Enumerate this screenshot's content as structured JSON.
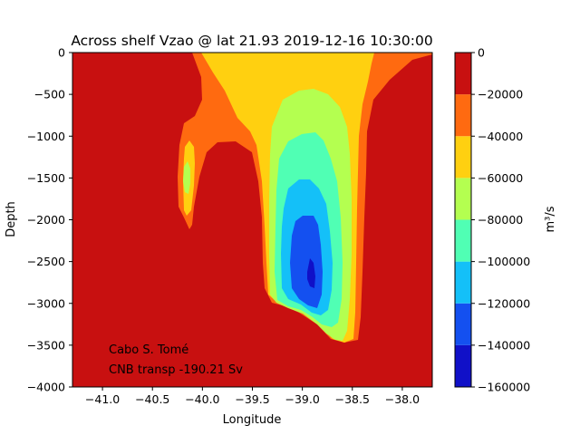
{
  "chart_data": {
    "type": "contourf",
    "title": "Across shelf Vzao @ lat 21.93 2019-12-16 10:30:00",
    "xlabel": "Longitude",
    "ylabel": "Depth",
    "xlim": [
      -41.3,
      -37.7
    ],
    "ylim": [
      -4000,
      0
    ],
    "xticks": [
      -41.0,
      -40.5,
      -40.0,
      -39.5,
      -39.0,
      -38.5,
      -38.0
    ],
    "xtick_labels": [
      "−41.0",
      "−40.5",
      "−40.0",
      "−39.5",
      "−39.0",
      "−38.5",
      "−38.0"
    ],
    "yticks": [
      0,
      -500,
      -1000,
      -1500,
      -2000,
      -2500,
      -3000,
      -3500,
      -4000
    ],
    "ytick_labels": [
      "0",
      "−500",
      "−1000",
      "−1500",
      "−2000",
      "−2500",
      "−3000",
      "−3500",
      "−4000"
    ],
    "colorbar": {
      "label": "m³/s",
      "ticks": [
        0,
        -20000,
        -40000,
        -60000,
        -80000,
        -100000,
        -120000,
        -140000,
        -160000
      ],
      "tick_labels": [
        "0",
        "−20000",
        "−40000",
        "−60000",
        "−80000",
        "−100000",
        "−120000",
        "−140000",
        "−160000"
      ],
      "levels": [
        {
          "range": [
            -160000,
            -140000
          ],
          "color": "#1010c8"
        },
        {
          "range": [
            -140000,
            -120000
          ],
          "color": "#1450f0"
        },
        {
          "range": [
            -120000,
            -100000
          ],
          "color": "#14c0f8"
        },
        {
          "range": [
            -100000,
            -80000
          ],
          "color": "#50ffb4"
        },
        {
          "range": [
            -80000,
            -60000
          ],
          "color": "#b4ff50"
        },
        {
          "range": [
            -60000,
            -40000
          ],
          "color": "#ffd010"
        },
        {
          "range": [
            -40000,
            -20000
          ],
          "color": "#ff6a10"
        },
        {
          "range": [
            -20000,
            0
          ],
          "color": "#c81010"
        }
      ]
    },
    "annotations": [
      "Cabo S. Tomé",
      "CNB transp -190.21 Sv"
    ]
  }
}
